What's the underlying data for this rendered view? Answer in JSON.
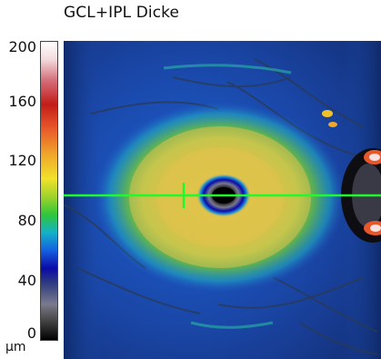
{
  "title": "GCL+IPL Dicke",
  "colorbar": {
    "ticks": [
      "200",
      "160",
      "120",
      "80",
      "40",
      "0"
    ],
    "unit": "µm"
  },
  "colors": {
    "crosshair": "#1dfc2a"
  }
}
